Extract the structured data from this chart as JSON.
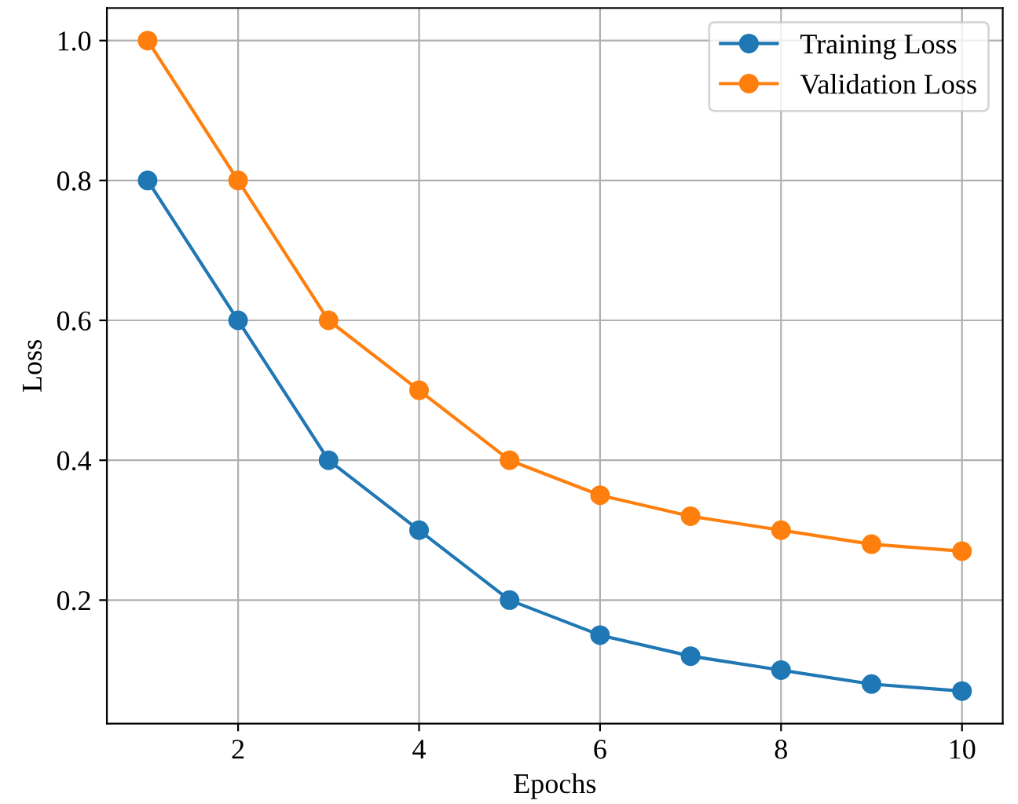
{
  "chart_data": {
    "type": "line",
    "xlabel": "Epochs",
    "ylabel": "Loss",
    "x": [
      1,
      2,
      3,
      4,
      5,
      6,
      7,
      8,
      9,
      10
    ],
    "series": [
      {
        "name": "Training Loss",
        "color": "#1f77b4",
        "values": [
          0.8,
          0.6,
          0.4,
          0.3,
          0.2,
          0.15,
          0.12,
          0.1,
          0.08,
          0.07
        ]
      },
      {
        "name": "Validation Loss",
        "color": "#ff7f0e",
        "values": [
          1.0,
          0.8,
          0.6,
          0.5,
          0.4,
          0.35,
          0.32,
          0.3,
          0.28,
          0.27
        ]
      }
    ],
    "xlim": [
      0.55,
      10.45
    ],
    "ylim": [
      0.0235,
      1.0465
    ],
    "xticks": [
      2,
      4,
      6,
      8,
      10
    ],
    "yticks": [
      0.2,
      0.4,
      0.6,
      0.8,
      {
        "value": 1.0,
        "label": "1.0"
      }
    ],
    "grid": true,
    "legend": "top right",
    "marker": "circle",
    "line_style": "solid"
  }
}
